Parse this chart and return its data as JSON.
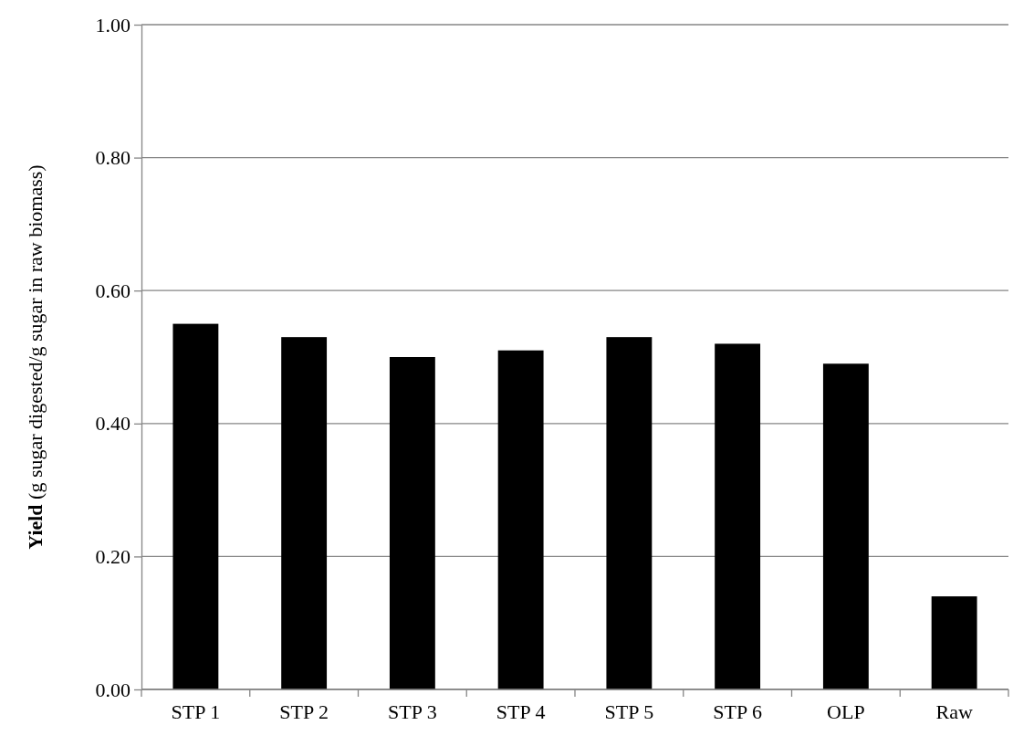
{
  "chart_data": {
    "type": "bar",
    "ylabel": "Yield (g sugar digested/g sugar in raw biomass)",
    "categories": [
      "STP 1",
      "STP 2",
      "STP 3",
      "STP 4",
      "STP 5",
      "STP 6",
      "OLP",
      "Raw"
    ],
    "values": [
      0.55,
      0.53,
      0.5,
      0.51,
      0.53,
      0.52,
      0.49,
      0.14
    ],
    "color": "#000000",
    "ylim": [
      0,
      1
    ],
    "yticks": [
      {
        "value": 0,
        "label": "0.00"
      },
      {
        "value": 0.2,
        "label": "0.20"
      },
      {
        "value": 0.4,
        "label": "0.40"
      },
      {
        "value": 0.6,
        "label": "0.60"
      },
      {
        "value": 0.8,
        "label": "0.80"
      },
      {
        "value": 1,
        "label": "1.00"
      }
    ],
    "grid": "y"
  }
}
